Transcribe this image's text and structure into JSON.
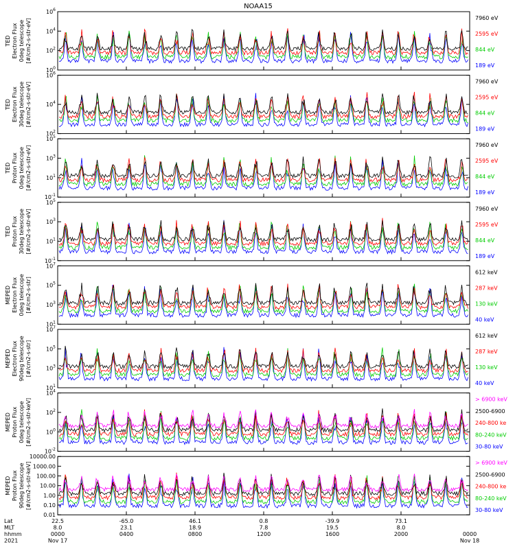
{
  "chart_data": {
    "type": "line",
    "title": "NOAA15",
    "time_range": {
      "start_label": "Nov 17",
      "end_label": "Nov 18",
      "year": "2021"
    },
    "panels": [
      {
        "ylabel": [
          "TED",
          "Electron Flux",
          "0deg telescope",
          "[#/cm2-s-str-eV]"
        ],
        "ticks": [
          "10^0",
          "10^2",
          "10^4",
          "10^6"
        ],
        "channels": [
          {
            "name": "7960 eV",
            "color": "#000000"
          },
          {
            "name": "2595 eV",
            "color": "#ff0000"
          },
          {
            "name": "844 eV",
            "color": "#00cc00"
          },
          {
            "name": "189 eV",
            "color": "#0000ff"
          }
        ]
      },
      {
        "ylabel": [
          "TED",
          "Electron Flux",
          "30deg telescope",
          "[#/cm2-s-str-eV]"
        ],
        "ticks": [
          "10^2",
          "10^4",
          "10^6"
        ],
        "channels": [
          {
            "name": "7960 eV",
            "color": "#000000"
          },
          {
            "name": "2595 eV",
            "color": "#ff0000"
          },
          {
            "name": "844 eV",
            "color": "#00cc00"
          },
          {
            "name": "189 eV",
            "color": "#0000ff"
          }
        ]
      },
      {
        "ylabel": [
          "TED",
          "Proton Flux",
          "0deg telescope",
          "[#/cm2-s-str-eV]"
        ],
        "ticks": [
          "10^-1",
          "10^1",
          "10^3",
          "10^5"
        ],
        "channels": [
          {
            "name": "7960 eV",
            "color": "#000000"
          },
          {
            "name": "2595 eV",
            "color": "#ff0000"
          },
          {
            "name": "844 eV",
            "color": "#00cc00"
          },
          {
            "name": "189 eV",
            "color": "#0000ff"
          }
        ]
      },
      {
        "ylabel": [
          "TED",
          "Proton Flux",
          "30deg telescope",
          "[#/cm2-s-str-eV]"
        ],
        "ticks": [
          "10^-1",
          "10^1",
          "10^3",
          "10^5"
        ],
        "channels": [
          {
            "name": "7960 eV",
            "color": "#000000"
          },
          {
            "name": "2595 eV",
            "color": "#ff0000"
          },
          {
            "name": "844 eV",
            "color": "#00cc00"
          },
          {
            "name": "189 eV",
            "color": "#0000ff"
          }
        ]
      },
      {
        "ylabel": [
          "MEPED",
          "Electron Flux",
          "0deg telescope",
          "[#/cm2-s-str]"
        ],
        "ticks": [
          "10^1",
          "10^3",
          "10^5",
          "10^7"
        ],
        "channels": [
          {
            "name": "612 keV",
            "color": "#000000"
          },
          {
            "name": "287 keV",
            "color": "#ff0000"
          },
          {
            "name": "130 keV",
            "color": "#00cc00"
          },
          {
            "name": "40 keV",
            "color": "#0000ff"
          }
        ]
      },
      {
        "ylabel": [
          "MEPED",
          "Electron Flux",
          "90deg telescope",
          "[#/cm2-s-str]"
        ],
        "ticks": [
          "10^1",
          "10^3",
          "10^5",
          "10^7"
        ],
        "channels": [
          {
            "name": "612 keV",
            "color": "#000000"
          },
          {
            "name": "287 keV",
            "color": "#ff0000"
          },
          {
            "name": "130 keV",
            "color": "#00cc00"
          },
          {
            "name": "40 keV",
            "color": "#0000ff"
          }
        ]
      },
      {
        "ylabel": [
          "MEPED",
          "Proton Flux",
          "0deg telescope",
          "[#/cm2-s-str-keV]"
        ],
        "ticks": [
          "10^-2",
          "10^0",
          "10^2",
          "10^4"
        ],
        "channels": [
          {
            "name": "> 6900 keV",
            "color": "#ff00ff"
          },
          {
            "name": "2500-6900",
            "color": "#000000"
          },
          {
            "name": "240-800 ke",
            "color": "#ff0000"
          },
          {
            "name": "80-240 keV",
            "color": "#00cc00"
          },
          {
            "name": "30-80 keV",
            "color": "#0000ff"
          }
        ]
      },
      {
        "ylabel": [
          "MEPED",
          "Proton Flux",
          "90deg telescope",
          "[#/cm2-s-str-keV]"
        ],
        "ticks": [
          "0.01",
          "0.10",
          "1.00",
          "10.00",
          "100.00",
          "1000.00",
          "10000.00"
        ],
        "channels": [
          {
            "name": "> 6900 keV",
            "color": "#ff00ff"
          },
          {
            "name": "2500-6900",
            "color": "#000000"
          },
          {
            "name": "240-800 ke",
            "color": "#ff0000"
          },
          {
            "name": "80-240 keV",
            "color": "#00cc00"
          },
          {
            "name": "30-80 keV",
            "color": "#0000ff"
          }
        ]
      }
    ],
    "x_axis": {
      "row_labels": [
        "Lat",
        "MLT",
        "hhmm",
        "2021"
      ],
      "columns": [
        {
          "lat": "22.5",
          "mlt": "8.0",
          "hhmm": "0000",
          "date": "Nov 17"
        },
        {
          "lat": "-65.0",
          "mlt": "23.1",
          "hhmm": "0400",
          "date": ""
        },
        {
          "lat": "46.1",
          "mlt": "18.9",
          "hhmm": "0800",
          "date": ""
        },
        {
          "lat": "0.8",
          "mlt": "7.8",
          "hhmm": "1200",
          "date": ""
        },
        {
          "lat": "-39.9",
          "mlt": "19.5",
          "hhmm": "1600",
          "date": ""
        },
        {
          "lat": "73.1",
          "mlt": "8.0",
          "hhmm": "2000",
          "date": ""
        },
        {
          "lat": "",
          "mlt": "",
          "hhmm": "0000",
          "date": "Nov 18"
        }
      ]
    }
  }
}
